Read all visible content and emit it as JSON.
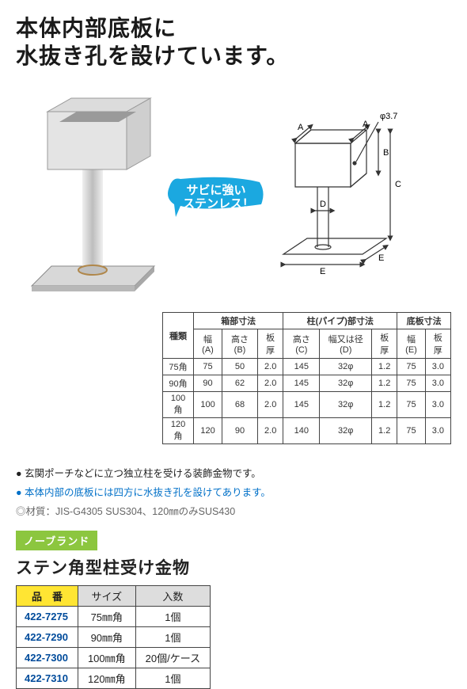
{
  "headline_l1": "本体内部底板に",
  "headline_l2": "水抜き孔を設けています。",
  "badge_l1": "サビに強い",
  "badge_l2": "ステンレス！",
  "badge_bg": "#1ba8e0",
  "diagram": {
    "phi": "φ3.7",
    "A": "A",
    "A2": "A",
    "B": "B",
    "C": "C",
    "D": "D",
    "E": "E",
    "E2": "E"
  },
  "spec_h": {
    "kind": "種類",
    "box": "箱部寸法",
    "pipe": "柱(パイプ)部寸法",
    "base": "底板寸法",
    "wA": "幅(A)",
    "hB": "高さ(B)",
    "t1": "板厚",
    "hC": "高さ(C)",
    "wD": "幅又は径(D)",
    "t2": "板厚",
    "wE": "幅(E)",
    "t3": "板厚"
  },
  "spec_rows": [
    {
      "k": "75角",
      "A": "75",
      "B": "50",
      "t1": "2.0",
      "C": "145",
      "D": "32φ",
      "t2": "1.2",
      "E": "75",
      "t3": "3.0"
    },
    {
      "k": "90角",
      "A": "90",
      "B": "62",
      "t1": "2.0",
      "C": "145",
      "D": "32φ",
      "t2": "1.2",
      "E": "75",
      "t3": "3.0"
    },
    {
      "k": "100角",
      "A": "100",
      "B": "68",
      "t1": "2.0",
      "C": "145",
      "D": "32φ",
      "t2": "1.2",
      "E": "75",
      "t3": "3.0"
    },
    {
      "k": "120角",
      "A": "120",
      "B": "90",
      "t1": "2.0",
      "C": "140",
      "D": "32φ",
      "t2": "1.2",
      "E": "75",
      "t3": "3.0"
    }
  ],
  "notes": {
    "n1": "● 玄関ポーチなどに立つ独立柱を受ける装飾金物です。",
    "n2": "● 本体内部の底板には四方に水抜き孔を設けてあります。",
    "n3": "◎材質：JIS-G4305 SUS304、120㎜のみSUS430"
  },
  "brand_tag": "ノーブランド",
  "prod_name": "ステン角型柱受け金物",
  "sku_h": {
    "code": "品　番",
    "size": "サイズ",
    "qty": "入数"
  },
  "sku_rows": [
    {
      "code": "422-7275",
      "size": "75㎜角",
      "qty": "1個"
    },
    {
      "code": "422-7290",
      "size": "90㎜角",
      "qty": "1個"
    },
    {
      "code": "422-7300",
      "size": "100㎜角",
      "qty": "20個/ケース"
    },
    {
      "code": "422-7310",
      "size": "120㎜角",
      "qty": "1個"
    }
  ],
  "colors": {
    "blue_text": "#0070c8",
    "green_tag": "#8cc63f",
    "yellow_th": "#ffe533",
    "code_blue": "#004b9b"
  }
}
